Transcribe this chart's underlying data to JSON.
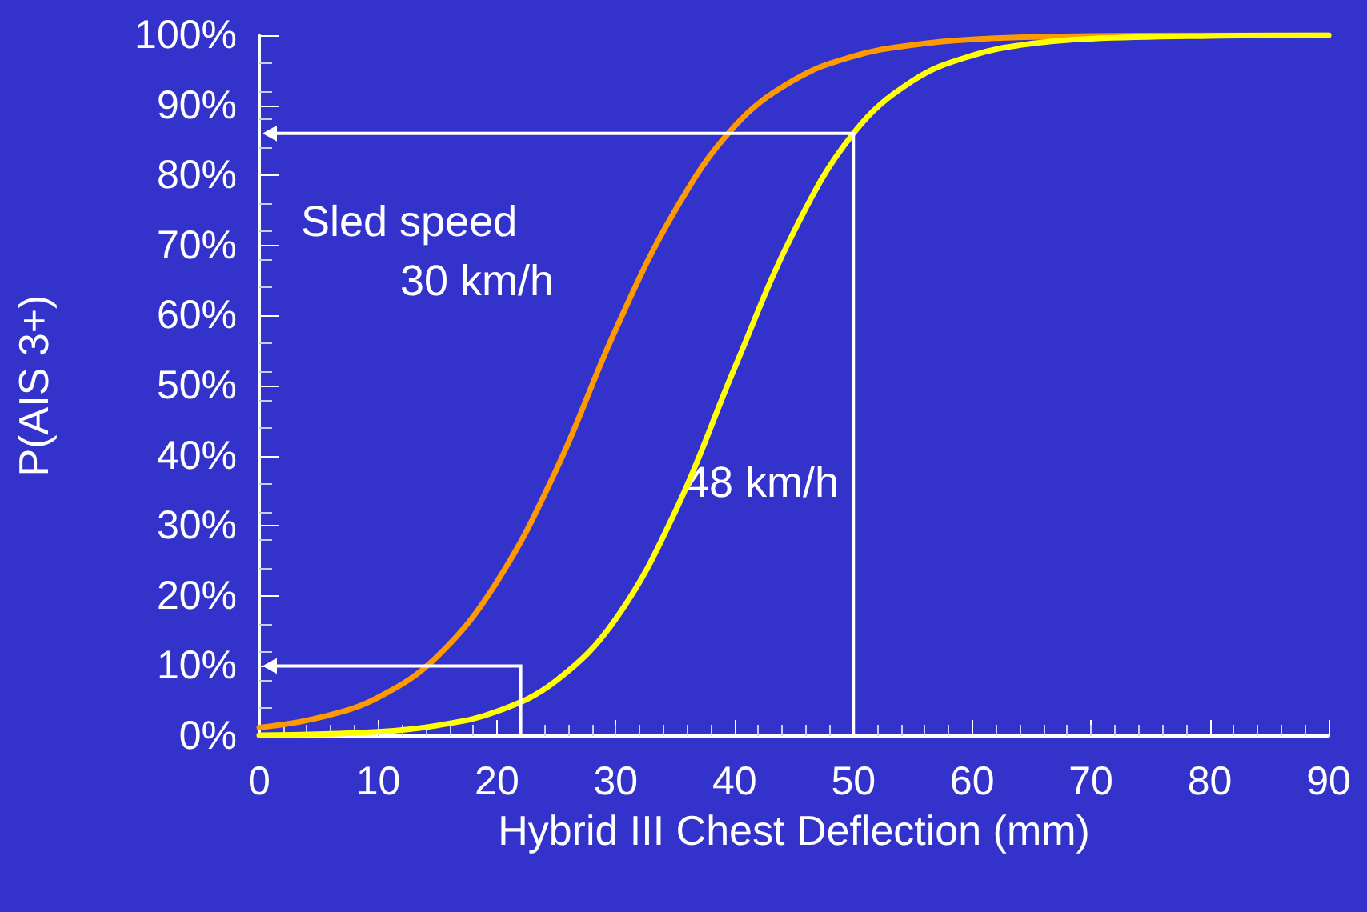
{
  "chart_data": {
    "type": "line",
    "xlabel": "Hybrid III Chest Deflection (mm)",
    "ylabel": "P(AIS 3+)",
    "xlim": [
      0,
      90
    ],
    "xticks": [
      0,
      10,
      20,
      30,
      40,
      50,
      60,
      70,
      80,
      90
    ],
    "ylim": [
      0,
      100
    ],
    "yticks": [
      {
        "value": 0,
        "label": "0%"
      },
      {
        "value": 10,
        "label": "10%"
      },
      {
        "value": 20,
        "label": "20%"
      },
      {
        "value": 30,
        "label": "30%"
      },
      {
        "value": 40,
        "label": "40%"
      },
      {
        "value": 50,
        "label": "50%"
      },
      {
        "value": 60,
        "label": "60%"
      },
      {
        "value": 70,
        "label": "70%"
      },
      {
        "value": 80,
        "label": "80%"
      },
      {
        "value": 90,
        "label": "90%"
      },
      {
        "value": 100,
        "label": "100%"
      }
    ],
    "grid": false,
    "marker": "none",
    "line_style": "solid",
    "annotations": [
      "Sled speed",
      "30 km/h",
      "48 km/h"
    ],
    "series": [
      {
        "color": "#ff9900",
        "x": [
          0,
          5,
          10,
          15,
          20,
          25,
          30,
          35,
          40,
          45,
          50,
          55,
          60,
          70,
          90
        ],
        "values": [
          1.2,
          2.6,
          5.5,
          11.4,
          22,
          38,
          58,
          75,
          87,
          93.6,
          97,
          98.6,
          99.4,
          99.9,
          100
        ]
      },
      {
        "color": "#ffff00",
        "x": [
          0,
          10,
          15,
          20,
          25,
          30,
          35,
          40,
          45,
          50,
          55,
          60,
          65,
          70,
          80,
          90
        ],
        "values": [
          0.1,
          0.6,
          1.5,
          3.5,
          7.9,
          16.7,
          32,
          52.5,
          72,
          86,
          93.5,
          97.1,
          98.8,
          99.5,
          99.9,
          100
        ]
      }
    ]
  }
}
